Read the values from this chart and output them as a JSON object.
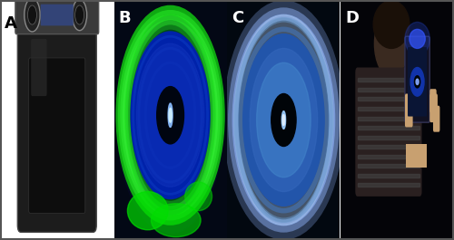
{
  "figure_width": 5.0,
  "figure_height": 2.65,
  "dpi": 100,
  "panels": [
    "A",
    "B",
    "C",
    "D"
  ],
  "panel_labels": [
    "A",
    "B",
    "C",
    "D"
  ],
  "label_fontsize": 13,
  "label_color": "white",
  "label_A_color": "black",
  "background_color": "white",
  "border_color": "#333333",
  "panel_A": {
    "bg_color": "#111111"
  },
  "panel_B": {
    "bg_color": "#050a1a"
  },
  "panel_C": {
    "bg_color": "#050a20"
  },
  "panel_D": {
    "bg_color": "#050510"
  }
}
